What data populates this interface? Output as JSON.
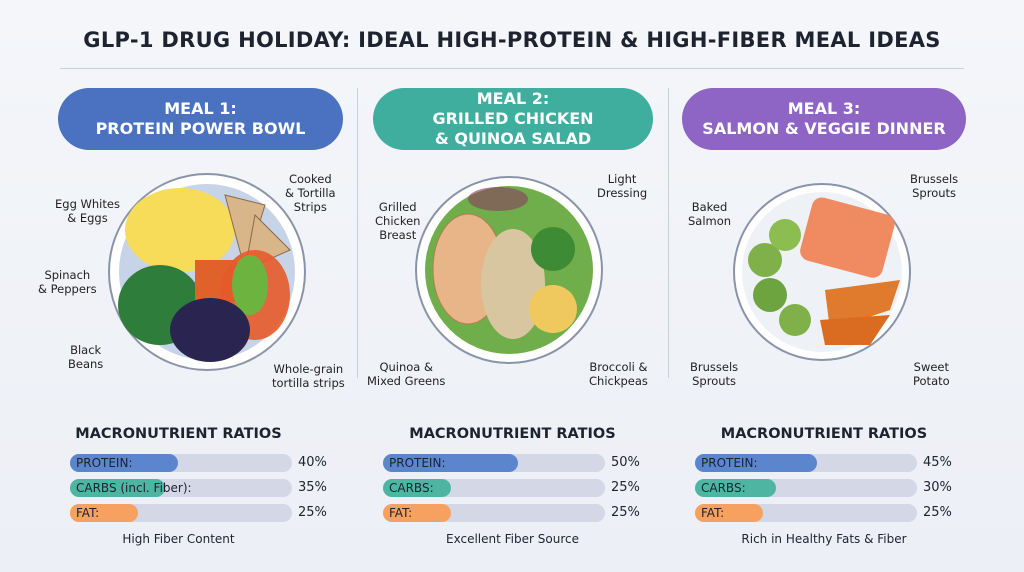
{
  "title": "GLP-1 DRUG HOLIDAY: IDEAL HIGH-PROTEIN & HIGH-FIBER MEAL IDEAS",
  "colors": {
    "protein": "#5b85cc",
    "carbs": "#4eb5a3",
    "fat": "#f6a15f",
    "meal1": "#4a72c0",
    "meal2": "#3fae9e",
    "meal3": "#8e65c4"
  },
  "meals": [
    {
      "line1": "MEAL 1:",
      "line2": "PROTEIN POWER BOWL",
      "labels": [
        "Egg Whites\n& Eggs",
        "Cooked\n& Tortilla\nStrips",
        "Spinach\n& Peppers",
        "Black\nBeans",
        "Whole-grain\ntortilla strips"
      ],
      "macro_title": "MACRONUTRIENT RATIOS",
      "macros": [
        {
          "label": "PROTEIN:",
          "value": "40%",
          "pct": 40
        },
        {
          "label": "CARBS (incl. Fiber):",
          "value": "35%",
          "pct": 35
        },
        {
          "label": "FAT:",
          "value": "25%",
          "pct": 25
        }
      ],
      "note": "High Fiber Content"
    },
    {
      "line1": "MEAL 2:",
      "line2": "GRILLED CHICKEN",
      "line3": "& QUINOA SALAD",
      "labels": [
        "Grilled\nChicken\nBreast",
        "Light\nDressing",
        "Quinoa &\nMixed Greens",
        "Broccoli &\nChickpeas"
      ],
      "macro_title": "MACRONUTRIENT RATIOS",
      "macros": [
        {
          "label": "PROTEIN:",
          "value": "50%",
          "pct": 50
        },
        {
          "label": "CARBS:",
          "value": "25%",
          "pct": 25
        },
        {
          "label": "FAT:",
          "value": "25%",
          "pct": 25
        }
      ],
      "note": "Excellent Fiber Source"
    },
    {
      "line1": "MEAL 3:",
      "line2": "SALMON & VEGGIE DINNER",
      "labels": [
        "Baked\nSalmon",
        "Brussels\nSprouts",
        "Brussels\nSprouts",
        "Sweet\nPotato"
      ],
      "macro_title": "MACRONUTRIENT RATIOS",
      "macros": [
        {
          "label": "PROTEIN:",
          "value": "45%",
          "pct": 45
        },
        {
          "label": "CARBS:",
          "value": "30%",
          "pct": 30
        },
        {
          "label": "FAT:",
          "value": "25%",
          "pct": 25
        }
      ],
      "note": "Rich in Healthy Fats & Fiber"
    }
  ]
}
